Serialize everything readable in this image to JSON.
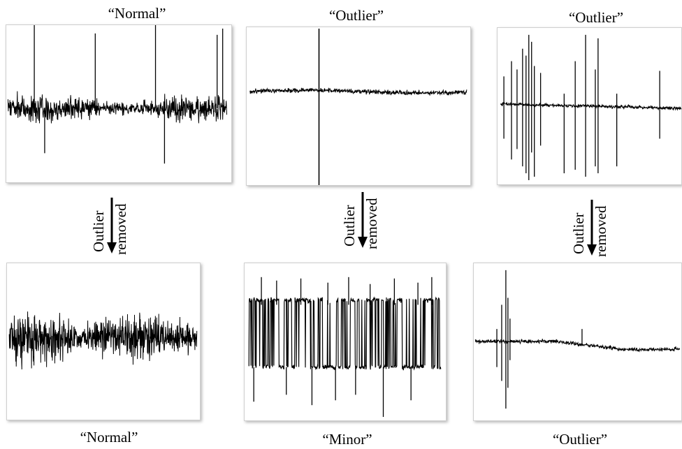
{
  "top_row": [
    {
      "caption": "“Normal”"
    },
    {
      "caption": "“Outlier”"
    },
    {
      "caption": "“Outlier”"
    }
  ],
  "bottom_row": [
    {
      "caption": "“Normal”"
    },
    {
      "caption": "“Minor”"
    },
    {
      "caption": "“Outlier”"
    }
  ],
  "arrows": [
    {
      "line1": "Outlier",
      "line2": "removed"
    },
    {
      "line1": "Outlier",
      "line2": "removed"
    },
    {
      "line1": "Outlier",
      "line2": "removed"
    }
  ]
}
